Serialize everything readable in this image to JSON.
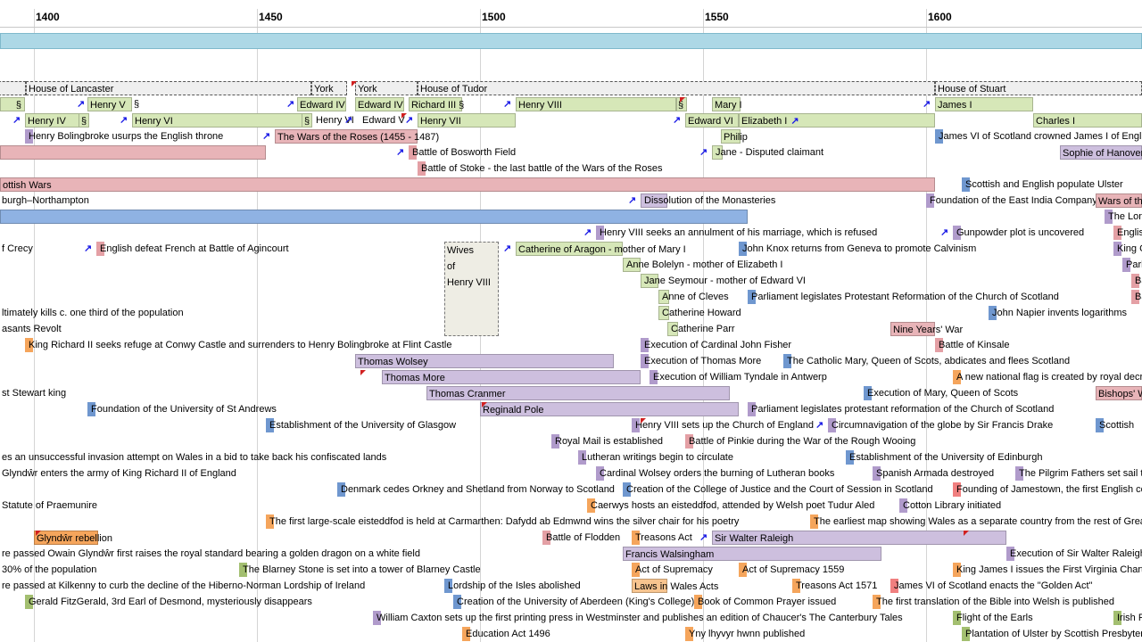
{
  "axis": {
    "years": [
      "1400",
      "1450",
      "1500",
      "1550",
      "1600"
    ]
  },
  "houses": [
    {
      "label": "House of Lancaster"
    },
    {
      "label": "York"
    },
    {
      "label": "York"
    },
    {
      "label": "House of Tudor"
    },
    {
      "label": "House of Stuart"
    }
  ],
  "monarchs": {
    "row1": [
      {
        "label": "§"
      },
      {
        "label": "Henry V"
      },
      {
        "label": "§"
      },
      {
        "label": "Edward IV"
      },
      {
        "label": "Edward IV"
      },
      {
        "label": "Richard III §"
      },
      {
        "label": "Henry VIII"
      },
      {
        "label": "§"
      },
      {
        "label": "Mary I"
      },
      {
        "label": "James I"
      }
    ],
    "row2": [
      {
        "label": "Henry IV"
      },
      {
        "label": "§"
      },
      {
        "label": "Henry VI"
      },
      {
        "label": "§"
      },
      {
        "label": "Henry VI"
      },
      {
        "label": "Edward V"
      },
      {
        "label": "Henry VII"
      },
      {
        "label": "Edward VI"
      },
      {
        "label": "Elizabeth I"
      },
      {
        "label": "Charles I"
      }
    ]
  },
  "events": [
    {
      "label": "Henry Bolingbroke usurps the English throne"
    },
    {
      "label": "The Wars of the Roses (1455 - 1487)"
    },
    {
      "label": "Philip"
    },
    {
      "label": "James VI of Scotland crowned James I of England"
    },
    {
      "label": "Battle of Bosworth Field"
    },
    {
      "label": "Jane - Disputed claimant"
    },
    {
      "label": "Sophie of Hanover"
    },
    {
      "label": "Battle of Stoke - the last battle of the Wars of the Roses"
    },
    {
      "label": "ottish Wars"
    },
    {
      "label": "Scottish and English populate Ulster"
    },
    {
      "label": "burgh–Northampton"
    },
    {
      "label": "Dissolution of the Monasteries"
    },
    {
      "label": "Foundation of the East India Company"
    },
    {
      "label": "Wars of th"
    },
    {
      "label": "The Lon"
    },
    {
      "label": "Henry VIII seeks an annulment of his marriage, which is refused"
    },
    {
      "label": "Gunpowder plot is uncovered"
    },
    {
      "label": "Englis"
    },
    {
      "label": "f Crecy"
    },
    {
      "label": "English defeat French at Battle of Agincourt"
    },
    {
      "label": "Catherine of Aragon - mother of Mary I"
    },
    {
      "label": "John Knox returns from Geneva to promote Calvinism"
    },
    {
      "label": "King C"
    },
    {
      "label": "Anne Bolelyn - mother of Elizabeth I"
    },
    {
      "label": "Parl"
    },
    {
      "label": "Jane Seymour - mother of Edward VI"
    },
    {
      "label": "Ba"
    },
    {
      "label": "Anne of Cleves"
    },
    {
      "label": "Parliament legislates Protestant Reformation of the Church of Scotland"
    },
    {
      "label": "Ba"
    },
    {
      "label": "ltimately kills c. one third of the population"
    },
    {
      "label": "Catherine Howard"
    },
    {
      "label": "John Napier invents logarithms"
    },
    {
      "label": "asants Revolt"
    },
    {
      "label": "Catherine Parr"
    },
    {
      "label": "Nine Years' War"
    },
    {
      "label": "King Richard II seeks refuge at Conwy Castle and surrenders to Henry Bolingbroke at Flint Castle"
    },
    {
      "label": "Execution of Cardinal John Fisher"
    },
    {
      "label": "Battle of Kinsale"
    },
    {
      "label": "Thomas Wolsey"
    },
    {
      "label": "Execution of Thomas More"
    },
    {
      "label": "The Catholic Mary, Queen of Scots, abdicates and flees Scotland"
    },
    {
      "label": "Thomas More"
    },
    {
      "label": "Execution of William Tyndale in Antwerp"
    },
    {
      "label": "A new national flag is created by royal decr"
    },
    {
      "label": "st Stewart king"
    },
    {
      "label": "Thomas Cranmer"
    },
    {
      "label": "Execution of Mary, Queen of Scots"
    },
    {
      "label": "Bishops' W"
    },
    {
      "label": "Foundation of the University of St Andrews"
    },
    {
      "label": "Reginald Pole"
    },
    {
      "label": "Parliament legislates protestant reformation of the Church of Scotland"
    },
    {
      "label": "Establishment of the University of Glasgow"
    },
    {
      "label": "Henry VIII sets up the Church of England"
    },
    {
      "label": "Circumnavigation of the globe by Sir Francis Drake"
    },
    {
      "label": "Scottish"
    },
    {
      "label": "Royal Mail is established"
    },
    {
      "label": "Battle of Pinkie during the War of the Rough Wooing"
    },
    {
      "label": "es an unsuccessful invasion attempt on Wales in a bid to take back his confiscated lands"
    },
    {
      "label": "Lutheran writings begin to circulate"
    },
    {
      "label": "Establishment of the University of Edinburgh"
    },
    {
      "label": "Glyndŵr enters the army of King Richard II of England"
    },
    {
      "label": "Cardinal Wolsey orders the burning of Lutheran books"
    },
    {
      "label": "Spanish Armada destroyed"
    },
    {
      "label": "The Pilgrim Fathers set sail to"
    },
    {
      "label": "Denmark cedes Orkney and Shetland from Norway to Scotland"
    },
    {
      "label": "Creation of the College of Justice and the Court of Session in Scotland"
    },
    {
      "label": "Founding of Jamestown, the first English co"
    },
    {
      "label": "Statute of Praemunire"
    },
    {
      "label": "Caerwys hosts an eisteddfod, attended by Welsh poet Tudur Aled"
    },
    {
      "label": "Cotton Library initiated"
    },
    {
      "label": "The first large-scale eisteddfod is held at Carmarthen: Dafydd ab Edmwnd wins the silver chair for his poetry"
    },
    {
      "label": "The earliest map showing Wales as a separate country from the rest of Grea"
    },
    {
      "label": "Glyndŵr rebellion"
    },
    {
      "label": "Battle of Flodden"
    },
    {
      "label": "Treasons Act"
    },
    {
      "label": "Sir Walter Raleigh"
    },
    {
      "label": "re passed Owain Glyndŵr first raises the royal standard bearing a golden dragon on a white field"
    },
    {
      "label": "Francis Walsingham"
    },
    {
      "label": "Execution of Sir Walter Raleigh"
    },
    {
      "label": "30% of the population"
    },
    {
      "label": "The Blarney Stone is set into a tower of Blarney Castle"
    },
    {
      "label": "Act of Supremacy"
    },
    {
      "label": "Act of Supremacy 1559"
    },
    {
      "label": "King James I issues the First Virginia Charte"
    },
    {
      "label": "re passed at Kilkenny to curb the decline of the Hiberno-Norman Lordship of Ireland"
    },
    {
      "label": "Lordship of the Isles abolished"
    },
    {
      "label": "Laws in Wales Acts"
    },
    {
      "label": "Treasons Act 1571"
    },
    {
      "label": "James VI of Scotland enacts the \"Golden Act\""
    },
    {
      "label": "Gerald FitzGerald, 3rd Earl of Desmond, mysteriously disappears"
    },
    {
      "label": "Creation of the University of Aberdeen (King's College)"
    },
    {
      "label": "Book of Common Prayer issued"
    },
    {
      "label": "The first translation of the Bible into Welsh is published"
    },
    {
      "label": "William Caxton sets up the first printing press in Westminster and publishes an edition of Chaucer's The Canterbury Tales"
    },
    {
      "label": "Flight of the Earls"
    },
    {
      "label": "Irish R"
    },
    {
      "label": "Education Act 1496"
    },
    {
      "label": "Yny lhyvyr hwnn published"
    },
    {
      "label": "Plantation of Ulster by Scottish Presbyter"
    }
  ],
  "wives_group": {
    "lines": [
      "Wives",
      "of",
      "Henry VIII"
    ]
  },
  "colors": {
    "band": "#add8e6",
    "green": "#d6e7b8",
    "pink": "#e8b4b8",
    "purple": "#cdbfde",
    "blue": "#8fb2e3"
  },
  "icons": {
    "link": "link-arrow-icon",
    "flag": "red-flag-icon"
  }
}
